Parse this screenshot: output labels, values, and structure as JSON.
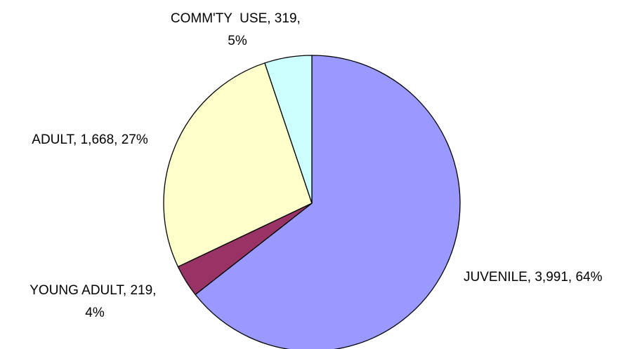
{
  "chart_data": {
    "type": "pie",
    "title": "",
    "start_angle": "12 o'clock",
    "direction": "clockwise",
    "slices": [
      {
        "label": "JUVENILE",
        "value": 3991,
        "value_label": "3,991",
        "percent": "64%",
        "color": "#9999ff"
      },
      {
        "label": "YOUNG ADULT",
        "value": 219,
        "value_label": "219",
        "percent": "4%",
        "color": "#993366"
      },
      {
        "label": "ADULT",
        "value": 1668,
        "value_label": "1,668",
        "percent": "27%",
        "color": "#ffffcc"
      },
      {
        "label": "COMM'TY  USE",
        "value": 319,
        "value_label": "319",
        "percent": "5%",
        "color": "#ccffff"
      }
    ],
    "data_labels": [
      {
        "lines": [
          "JUVENILE, 3,991, 64%"
        ]
      },
      {
        "lines": [
          "YOUNG ADULT, 219,",
          "4%"
        ]
      },
      {
        "lines": [
          "ADULT, 1,668, 27%"
        ]
      },
      {
        "lines": [
          "COMM'TY  USE, 319,",
          "5%"
        ]
      }
    ]
  }
}
